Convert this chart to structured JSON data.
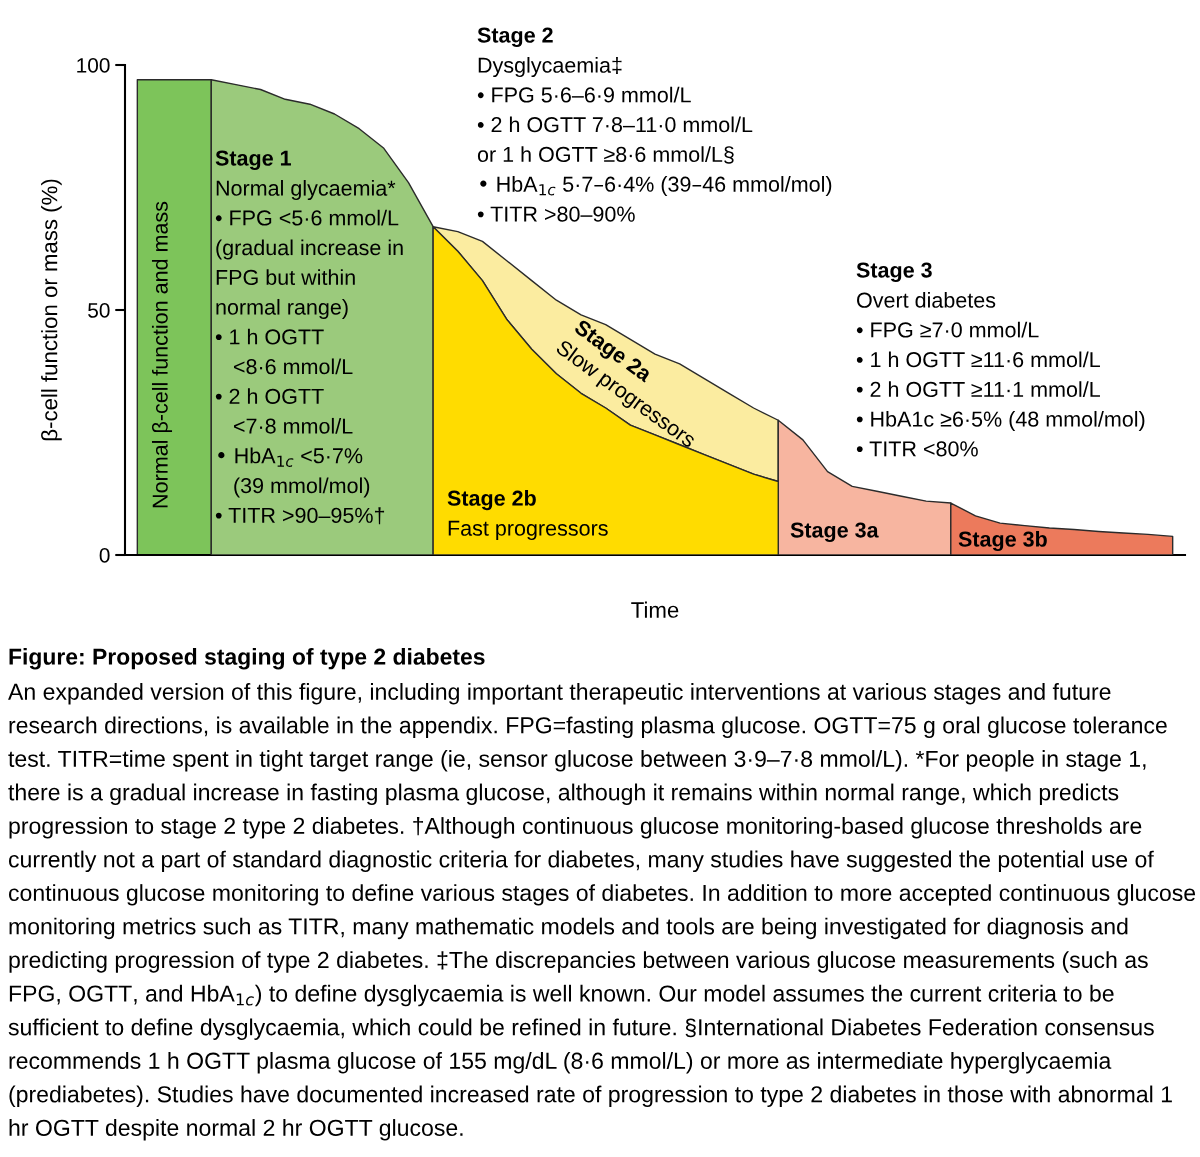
{
  "chart_data": {
    "type": "area",
    "title": "Figure: Proposed staging of type 2 diabetes",
    "xlabel": "Time",
    "ylabel": "β-cell function or mass (%)",
    "categories": [
      null,
      null,
      null,
      null,
      null,
      null,
      null,
      null,
      null,
      null,
      null,
      null,
      null,
      null,
      null,
      null,
      null,
      null,
      null,
      null,
      null,
      null,
      null,
      null,
      null,
      null,
      null,
      null,
      null,
      null,
      null,
      null,
      null,
      null,
      null,
      null,
      null,
      null,
      null,
      null,
      null,
      null,
      null
    ],
    "ylim": [
      0,
      100
    ],
    "yticks": [
      0,
      50,
      100
    ],
    "grid": false,
    "legend": false,
    "series": [
      {
        "color": "#7dc45a",
        "values": [
          97,
          97,
          97,
          97,
          null,
          null,
          null,
          null,
          null,
          null,
          null,
          null,
          null,
          null,
          null,
          null,
          null,
          null,
          null,
          null,
          null,
          null,
          null,
          null,
          null,
          null,
          null,
          null,
          null,
          null,
          null,
          null,
          null,
          null,
          null,
          null,
          null,
          null,
          null,
          null,
          null,
          null,
          null
        ]
      },
      {
        "color": "#9bca7c",
        "values": [
          null,
          null,
          null,
          97,
          96,
          95,
          93,
          92,
          90,
          87,
          83,
          76,
          67,
          null,
          null,
          null,
          null,
          null,
          null,
          null,
          null,
          null,
          null,
          null,
          null,
          null,
          null,
          null,
          null,
          null,
          null,
          null,
          null,
          null,
          null,
          null,
          null,
          null,
          null,
          null,
          null,
          null,
          null
        ]
      },
      {
        "color": "#fbeca0",
        "values": [
          null,
          null,
          null,
          null,
          null,
          null,
          null,
          null,
          null,
          null,
          null,
          null,
          67,
          66,
          64,
          60,
          56,
          52,
          49,
          47,
          44,
          41,
          39,
          36,
          33,
          30,
          27.5,
          null,
          null,
          null,
          null,
          null,
          null,
          null,
          null,
          null,
          null,
          null,
          null,
          null,
          null,
          null,
          null
        ]
      },
      {
        "color": "#f7b5a0",
        "values": [
          null,
          null,
          null,
          null,
          null,
          null,
          null,
          null,
          null,
          null,
          null,
          null,
          null,
          null,
          null,
          null,
          null,
          null,
          null,
          null,
          null,
          null,
          null,
          null,
          null,
          null,
          27.5,
          23.5,
          17,
          14,
          13,
          12,
          11,
          10.6,
          null,
          null,
          null,
          null,
          null,
          null,
          null,
          null,
          null
        ]
      },
      {
        "color": "#ec7a5c",
        "values": [
          null,
          null,
          null,
          null,
          null,
          null,
          null,
          null,
          null,
          null,
          null,
          null,
          null,
          null,
          null,
          null,
          null,
          null,
          null,
          null,
          null,
          null,
          null,
          null,
          null,
          null,
          null,
          null,
          null,
          null,
          null,
          null,
          null,
          10.6,
          8,
          6.5,
          6,
          5.5,
          5.2,
          4.8,
          4.5,
          4.2,
          3.8
        ]
      },
      {
        "color": "#ffdc00",
        "values": [
          null,
          null,
          null,
          null,
          null,
          null,
          null,
          null,
          null,
          null,
          null,
          null,
          67,
          62,
          56,
          48,
          42,
          37,
          33,
          30,
          26.5,
          24.5,
          22.5,
          20.5,
          18.5,
          16.5,
          15,
          null,
          null,
          null,
          null,
          null,
          null,
          null,
          null,
          null,
          null,
          null,
          null,
          null,
          null,
          null,
          null
        ]
      }
    ],
    "annotations": [
      "Normal β-cell function and mass",
      "Stage 1\nNormal glycaemia*\n• FPG <5·6 mmol/L\n(gradual increase in\nFPG but within\nnormal range)\n• 1 h OGTT\n   <8·6 mmol/L\n• 2 h OGTT\n   <7·8 mmol/L\n• HbA$_{1c}$ <5·7%\n   (39 mmol/mol)\n• TITR >90–95%†",
      "Stage 2\nDysglycaemia‡\n• FPG 5·6–6·9 mmol/L\n• 2 h OGTT 7·8–11·0 mmol/L\nor 1 h OGTT ≥8·6 mmol/L§\n• HbA$_{1c}$ 5·7–6·4% (39–46 mmol/mol)\n• TITR >80–90%",
      "Stage 2a\nSlow progressors",
      "Stage 2b\nFast progressors",
      "Stage 3\nOvert diabetes\n• FPG ≥7·0 mmol/L\n• 1 h OGTT ≥11·6 mmol/L\n• 2 h OGTT ≥11·1 mmol/L\n• HbA1c ≥6·5% (48 mmol/mol)\n• TITR <80%",
      "Stage 3a",
      "Stage 3b",
      "An expanded version of this figure, including important therapeutic interventions at various stages and future research directions, is available in the appendix. FPG=fasting plasma glucose. OGTT=75 g oral glucose tolerance test. TITR=time spent in tight target range (ie, sensor glucose between 3·9–7·8 mmol/L). *For people in stage 1, there is a gradual increase in fasting plasma glucose, although it remains within normal range, which predicts progression to stage 2 type 2 diabetes. †Although continuous glucose monitoring-based glucose thresholds are currently not a part of standard diagnostic criteria for diabetes, many studies have suggested the potential use of continuous glucose monitoring to define various stages of diabetes. In addition to more accepted continuous glucose monitoring metrics such as TITR, many mathematic models and tools are being investigated for diagnosis and predicting progression of type 2 diabetes. ‡The discrepancies between various glucose measurements (such as FPG, OGTT, and HbA$_{1c}$) to define dysglycaemia is well known. Our model assumes the current criteria to be sufficient to define dysglycaemia, which could be refined in future. §International Diabetes Federation consensus recommends 1 h OGTT plasma glucose of 155 mg/dL (8·6 mmol/L) or more as intermediate hyperglycaemia (prediabetes). Studies have documented increased rate of progression to type 2 diabetes in those with abnormal 1 hr OGTT despite normal 2 hr OGTT glucose."
    ]
  }
}
